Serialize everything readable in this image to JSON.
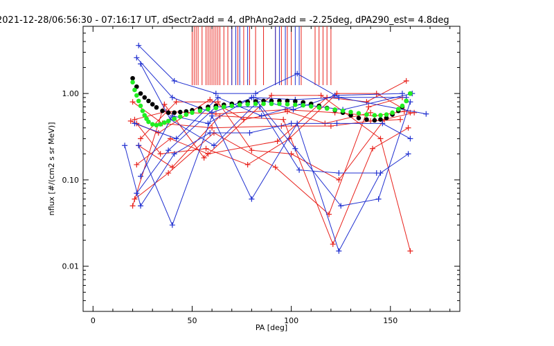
{
  "chart_data": {
    "type": "scatter",
    "title": "2021-12-28/06:56:30 - 07:16:17 UT, dSectr2add = 4, dPhAng2add = -2.25deg, dPA290_est=   4.8deg",
    "xlabel": "PA [deg]",
    "ylabel": "nflux [#/(cm2 s sr MeV)]",
    "xlim": [
      -5,
      185
    ],
    "ylim": [
      0.003,
      6
    ],
    "y_scale": "log",
    "x_ticks": [
      "0",
      "50",
      "100",
      "150"
    ],
    "x_tick_values": [
      0,
      50,
      100,
      150
    ],
    "y_ticks": [
      "0.01",
      "0.10",
      "1.00"
    ],
    "y_tick_values": [
      0.01,
      0.1,
      1.0
    ],
    "grid": false,
    "colors": {
      "red": "#e8201a",
      "blue": "#1f2fd0",
      "black": "#000000",
      "green": "#22ee22"
    },
    "red_traces": [
      [
        [
          20,
          0.8
        ],
        [
          35,
          0.45
        ],
        [
          60,
          0.4
        ],
        [
          95,
          0.42
        ],
        [
          120,
          0.42
        ],
        [
          140,
          0.48
        ],
        [
          155,
          0.5
        ]
      ],
      [
        [
          21,
          0.5
        ],
        [
          37,
          0.62
        ],
        [
          62,
          0.58
        ],
        [
          97,
          0.65
        ],
        [
          122,
          0.6
        ],
        [
          142,
          0.55
        ],
        [
          157,
          0.62
        ]
      ],
      [
        [
          22,
          0.15
        ],
        [
          39,
          0.3
        ],
        [
          58,
          0.2
        ],
        [
          93,
          0.28
        ],
        [
          118,
          0.9
        ],
        [
          138,
          0.8
        ],
        [
          158,
          1.4
        ]
      ],
      [
        [
          20,
          0.05
        ],
        [
          36,
          0.75
        ],
        [
          56,
          0.18
        ],
        [
          90,
          0.95
        ],
        [
          115,
          0.95
        ],
        [
          145,
          0.3
        ],
        [
          160,
          0.015
        ]
      ],
      [
        [
          21,
          0.06
        ],
        [
          38,
          0.12
        ],
        [
          61,
          0.35
        ],
        [
          92,
          0.14
        ],
        [
          119,
          0.04
        ],
        [
          139,
          0.7
        ],
        [
          156,
          0.9
        ]
      ],
      [
        [
          23,
          0.25
        ],
        [
          40,
          0.14
        ],
        [
          64,
          0.55
        ],
        [
          96,
          0.5
        ],
        [
          121,
          0.018
        ],
        [
          141,
          0.23
        ],
        [
          159,
          0.4
        ]
      ],
      [
        [
          22,
          0.45
        ],
        [
          34,
          0.2
        ],
        [
          57,
          0.23
        ],
        [
          78,
          0.15
        ],
        [
          99,
          0.3
        ],
        [
          123,
          1.0
        ],
        [
          143,
          1.0
        ],
        [
          160,
          0.6
        ]
      ],
      [
        [
          24,
          0.3
        ],
        [
          42,
          0.8
        ],
        [
          63,
          0.8
        ],
        [
          80,
          0.22
        ],
        [
          100,
          0.2
        ],
        [
          124,
          0.1
        ],
        [
          147,
          0.5
        ],
        [
          162,
          0.6
        ]
      ],
      [
        [
          19,
          0.48
        ],
        [
          33,
          0.35
        ],
        [
          59,
          0.85
        ],
        [
          76,
          0.5
        ],
        [
          98,
          0.62
        ],
        [
          117,
          0.45
        ],
        [
          140,
          0.6
        ]
      ]
    ],
    "blue_traces": [
      [
        [
          23,
          3.6
        ],
        [
          41,
          1.4
        ],
        [
          62,
          1.0
        ],
        [
          82,
          1.0
        ],
        [
          103,
          1.7
        ],
        [
          124,
          0.9
        ],
        [
          158,
          0.9
        ]
      ],
      [
        [
          22,
          2.6
        ],
        [
          40,
          0.9
        ],
        [
          60,
          0.6
        ],
        [
          81,
          0.9
        ],
        [
          101,
          0.65
        ],
        [
          122,
          0.95
        ],
        [
          156,
          1.0
        ]
      ],
      [
        [
          24,
          2.2
        ],
        [
          39,
          0.5
        ],
        [
          61,
          0.25
        ],
        [
          83,
          0.8
        ],
        [
          102,
          0.23
        ],
        [
          125,
          0.05
        ],
        [
          144,
          0.06
        ],
        [
          160,
          0.8
        ]
      ],
      [
        [
          23,
          0.25
        ],
        [
          40,
          0.03
        ],
        [
          60,
          0.55
        ],
        [
          80,
          0.06
        ],
        [
          103,
          0.45
        ],
        [
          124,
          0.015
        ],
        [
          145,
          0.12
        ],
        [
          159,
          0.2
        ]
      ],
      [
        [
          16,
          0.25
        ],
        [
          24,
          0.05
        ],
        [
          41,
          0.2
        ],
        [
          59,
          0.35
        ],
        [
          79,
          0.35
        ],
        [
          100,
          0.45
        ],
        [
          123,
          0.45
        ],
        [
          146,
          0.45
        ],
        [
          160,
          0.3
        ]
      ],
      [
        [
          22,
          0.07
        ],
        [
          38,
          0.22
        ],
        [
          62,
          0.7
        ],
        [
          84,
          0.7
        ],
        [
          104,
          0.13
        ],
        [
          124,
          0.12
        ],
        [
          143,
          0.12
        ]
      ],
      [
        [
          21,
          0.45
        ],
        [
          42,
          0.3
        ],
        [
          63,
          0.9
        ],
        [
          85,
          0.55
        ],
        [
          105,
          0.75
        ],
        [
          126,
          0.65
        ],
        [
          161,
          1.0
        ]
      ],
      [
        [
          24,
          0.11
        ],
        [
          40,
          0.55
        ],
        [
          58,
          0.45
        ],
        [
          80,
          0.9
        ],
        [
          102,
          0.85
        ],
        [
          124,
          0.9
        ],
        [
          168,
          0.58
        ]
      ]
    ],
    "red_vlines": [
      50,
      51,
      52,
      53,
      55,
      57,
      58,
      59,
      60,
      61,
      62,
      63,
      64,
      66,
      68,
      70,
      73,
      76,
      79,
      82,
      86,
      92,
      95,
      98,
      100,
      105,
      112,
      114,
      116,
      118,
      120
    ],
    "blue_vlines": [
      70,
      72,
      74,
      78,
      92,
      94,
      97,
      102,
      104
    ],
    "black_series_x": [
      20,
      22,
      24,
      26,
      28,
      30,
      32,
      35,
      38,
      41,
      44,
      47,
      50,
      54,
      58,
      62,
      66,
      70,
      74,
      78,
      82,
      86,
      90,
      94,
      98,
      102,
      106,
      110,
      114,
      118,
      122,
      126,
      130,
      134,
      138,
      142,
      145,
      148,
      151,
      154,
      156,
      158,
      160
    ],
    "black_series_y": [
      1.5,
      1.2,
      1.0,
      0.9,
      0.82,
      0.75,
      0.69,
      0.63,
      0.6,
      0.6,
      0.61,
      0.62,
      0.64,
      0.67,
      0.7,
      0.72,
      0.74,
      0.76,
      0.78,
      0.8,
      0.81,
      0.82,
      0.82,
      0.82,
      0.82,
      0.81,
      0.79,
      0.76,
      0.72,
      0.68,
      0.64,
      0.6,
      0.56,
      0.52,
      0.5,
      0.49,
      0.5,
      0.52,
      0.57,
      0.63,
      0.7,
      0.82,
      1.0
    ],
    "green_series_x": [
      20,
      21,
      22,
      23,
      24,
      25,
      26,
      27,
      28,
      30,
      32,
      34,
      36,
      38,
      41,
      44,
      47,
      50,
      54,
      58,
      62,
      66,
      70,
      74,
      78,
      82,
      86,
      90,
      94,
      98,
      102,
      106,
      110,
      114,
      118,
      122,
      126,
      130,
      134,
      138,
      142,
      145,
      148,
      151,
      154,
      156,
      158,
      160
    ],
    "green_series_y": [
      1.35,
      1.1,
      0.95,
      0.82,
      0.72,
      0.63,
      0.56,
      0.51,
      0.47,
      0.44,
      0.43,
      0.44,
      0.46,
      0.48,
      0.51,
      0.54,
      0.57,
      0.6,
      0.63,
      0.66,
      0.68,
      0.7,
      0.72,
      0.74,
      0.75,
      0.76,
      0.76,
      0.76,
      0.76,
      0.75,
      0.74,
      0.73,
      0.71,
      0.69,
      0.67,
      0.65,
      0.63,
      0.61,
      0.59,
      0.57,
      0.56,
      0.56,
      0.57,
      0.6,
      0.66,
      0.72,
      0.82,
      1.0
    ]
  }
}
